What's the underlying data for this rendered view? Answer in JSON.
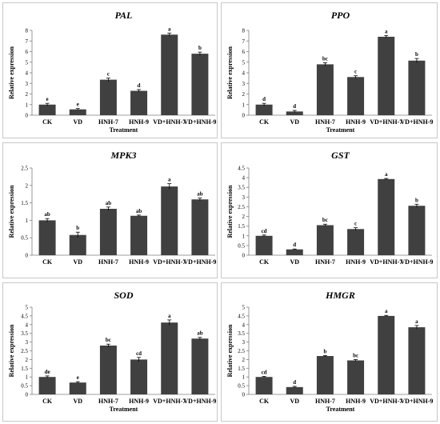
{
  "figure": {
    "colors": {
      "bar": "#404040",
      "axis": "#7f7f7f",
      "frame": "#c8c8c8"
    }
  },
  "chart_data": [
    {
      "type": "bar",
      "title": "PAL",
      "xlabel": "Treatment",
      "ylabel": "Relative expression",
      "categories": [
        "CK",
        "VD",
        "HNH-7",
        "HNH-9",
        "VD+HNH-7",
        "VD+HNH-9"
      ],
      "values": [
        1.0,
        0.55,
        3.35,
        2.3,
        7.6,
        5.8
      ],
      "errors": [
        0.12,
        0.08,
        0.15,
        0.12,
        0.15,
        0.15
      ],
      "letters": [
        "e",
        "e",
        "c",
        "d",
        "a",
        "b"
      ],
      "ylim": [
        0,
        8
      ],
      "yticks": [
        0,
        1,
        2,
        3,
        4,
        5,
        6,
        7,
        8
      ],
      "ytick_labels": [
        "0",
        "1",
        "2",
        "3",
        "4",
        "5",
        "6",
        "7",
        "8"
      ],
      "grid": false
    },
    {
      "type": "bar",
      "title": "PPO",
      "xlabel": "Treatment",
      "ylabel": "Relative expression",
      "categories": [
        "CK",
        "VD",
        "HNH-7",
        "HNH-9",
        "VD+HNH-7",
        "VD+HNH-9"
      ],
      "values": [
        1.0,
        0.35,
        4.8,
        3.6,
        7.4,
        5.15
      ],
      "errors": [
        0.12,
        0.1,
        0.15,
        0.12,
        0.12,
        0.2
      ],
      "letters": [
        "d",
        "d",
        "bc",
        "c",
        "a",
        "b"
      ],
      "ylim": [
        0,
        8
      ],
      "yticks": [
        0,
        1,
        2,
        3,
        4,
        5,
        6,
        7,
        8
      ],
      "ytick_labels": [
        "0",
        "1",
        "2",
        "3",
        "4",
        "5",
        "6",
        "7",
        "8"
      ],
      "grid": false
    },
    {
      "type": "bar",
      "title": "MPK3",
      "xlabel": "",
      "ylabel": "Relative expression",
      "categories": [
        "CK",
        "VD",
        "HNH-7",
        "HNH-9",
        "VD+HNH-7",
        "VD+HNH-9"
      ],
      "values": [
        1.0,
        0.58,
        1.33,
        1.13,
        1.97,
        1.6
      ],
      "errors": [
        0.05,
        0.08,
        0.05,
        0.02,
        0.08,
        0.04
      ],
      "letters": [
        "ab",
        "b",
        "ab",
        "ab",
        "a",
        "ab"
      ],
      "ylim": [
        0,
        2.5
      ],
      "yticks": [
        0,
        0.5,
        1,
        1.5,
        2,
        2.5
      ],
      "ytick_labels": [
        "0",
        "0.5",
        "1",
        "1.5",
        "2",
        "2.5"
      ],
      "grid": false
    },
    {
      "type": "bar",
      "title": "GST",
      "xlabel": "",
      "ylabel": "Relative expression",
      "categories": [
        "CK",
        "VD",
        "HNH-7",
        "HNH-9",
        "VD+HNH-7",
        "VD+HNH-9"
      ],
      "values": [
        1.0,
        0.3,
        1.55,
        1.35,
        3.93,
        2.55
      ],
      "errors": [
        0.04,
        0.02,
        0.05,
        0.07,
        0.03,
        0.08
      ],
      "letters": [
        "cd",
        "d",
        "bc",
        "c",
        "a",
        "b"
      ],
      "ylim": [
        0,
        4.5
      ],
      "yticks": [
        0,
        0.5,
        1,
        1.5,
        2,
        2.5,
        3,
        3.5,
        4,
        4.5
      ],
      "ytick_labels": [
        "0",
        "0.5",
        "1",
        "1.5",
        "2",
        "2.5",
        "3",
        "3.5",
        "4",
        "4.5"
      ],
      "grid": false
    },
    {
      "type": "bar",
      "title": "SOD",
      "xlabel": "Treatment",
      "ylabel": "Relative expression",
      "categories": [
        "CK",
        "VD",
        "HNH-7",
        "HNH-9",
        "VD+HNH-7",
        "VD+HNH-9"
      ],
      "values": [
        1.0,
        0.68,
        2.8,
        2.0,
        4.12,
        3.2
      ],
      "errors": [
        0.06,
        0.05,
        0.08,
        0.12,
        0.15,
        0.07
      ],
      "letters": [
        "de",
        "e",
        "bc",
        "cd",
        "a",
        "ab"
      ],
      "ylim": [
        0,
        5
      ],
      "yticks": [
        0,
        0.5,
        1,
        1.5,
        2,
        2.5,
        3,
        3.5,
        4,
        4.5,
        5
      ],
      "ytick_labels": [
        "0",
        "0.5",
        "1",
        "1.5",
        "2",
        "2.5",
        "3",
        "3.5",
        "4",
        "4.5",
        "5"
      ],
      "grid": false
    },
    {
      "type": "bar",
      "title": "HMGR",
      "xlabel": "Treatment",
      "ylabel": "Relative expression",
      "categories": [
        "CK",
        "VD",
        "HNH-7",
        "HNH-9",
        "VD+HNH-7",
        "VD+HNH-9"
      ],
      "values": [
        1.0,
        0.42,
        2.2,
        1.95,
        4.5,
        3.85
      ],
      "errors": [
        0.03,
        0.04,
        0.03,
        0.05,
        0.03,
        0.1
      ],
      "letters": [
        "cd",
        "d",
        "b",
        "bc",
        "a",
        "a"
      ],
      "ylim": [
        0,
        5
      ],
      "yticks": [
        0,
        0.5,
        1,
        1.5,
        2,
        2.5,
        3,
        3.5,
        4,
        4.5,
        5
      ],
      "ytick_labels": [
        "0",
        "0.5",
        "1",
        "1.5",
        "2",
        "2.5",
        "3",
        "3.5",
        "4",
        "4.5",
        "5"
      ],
      "grid": false
    }
  ]
}
